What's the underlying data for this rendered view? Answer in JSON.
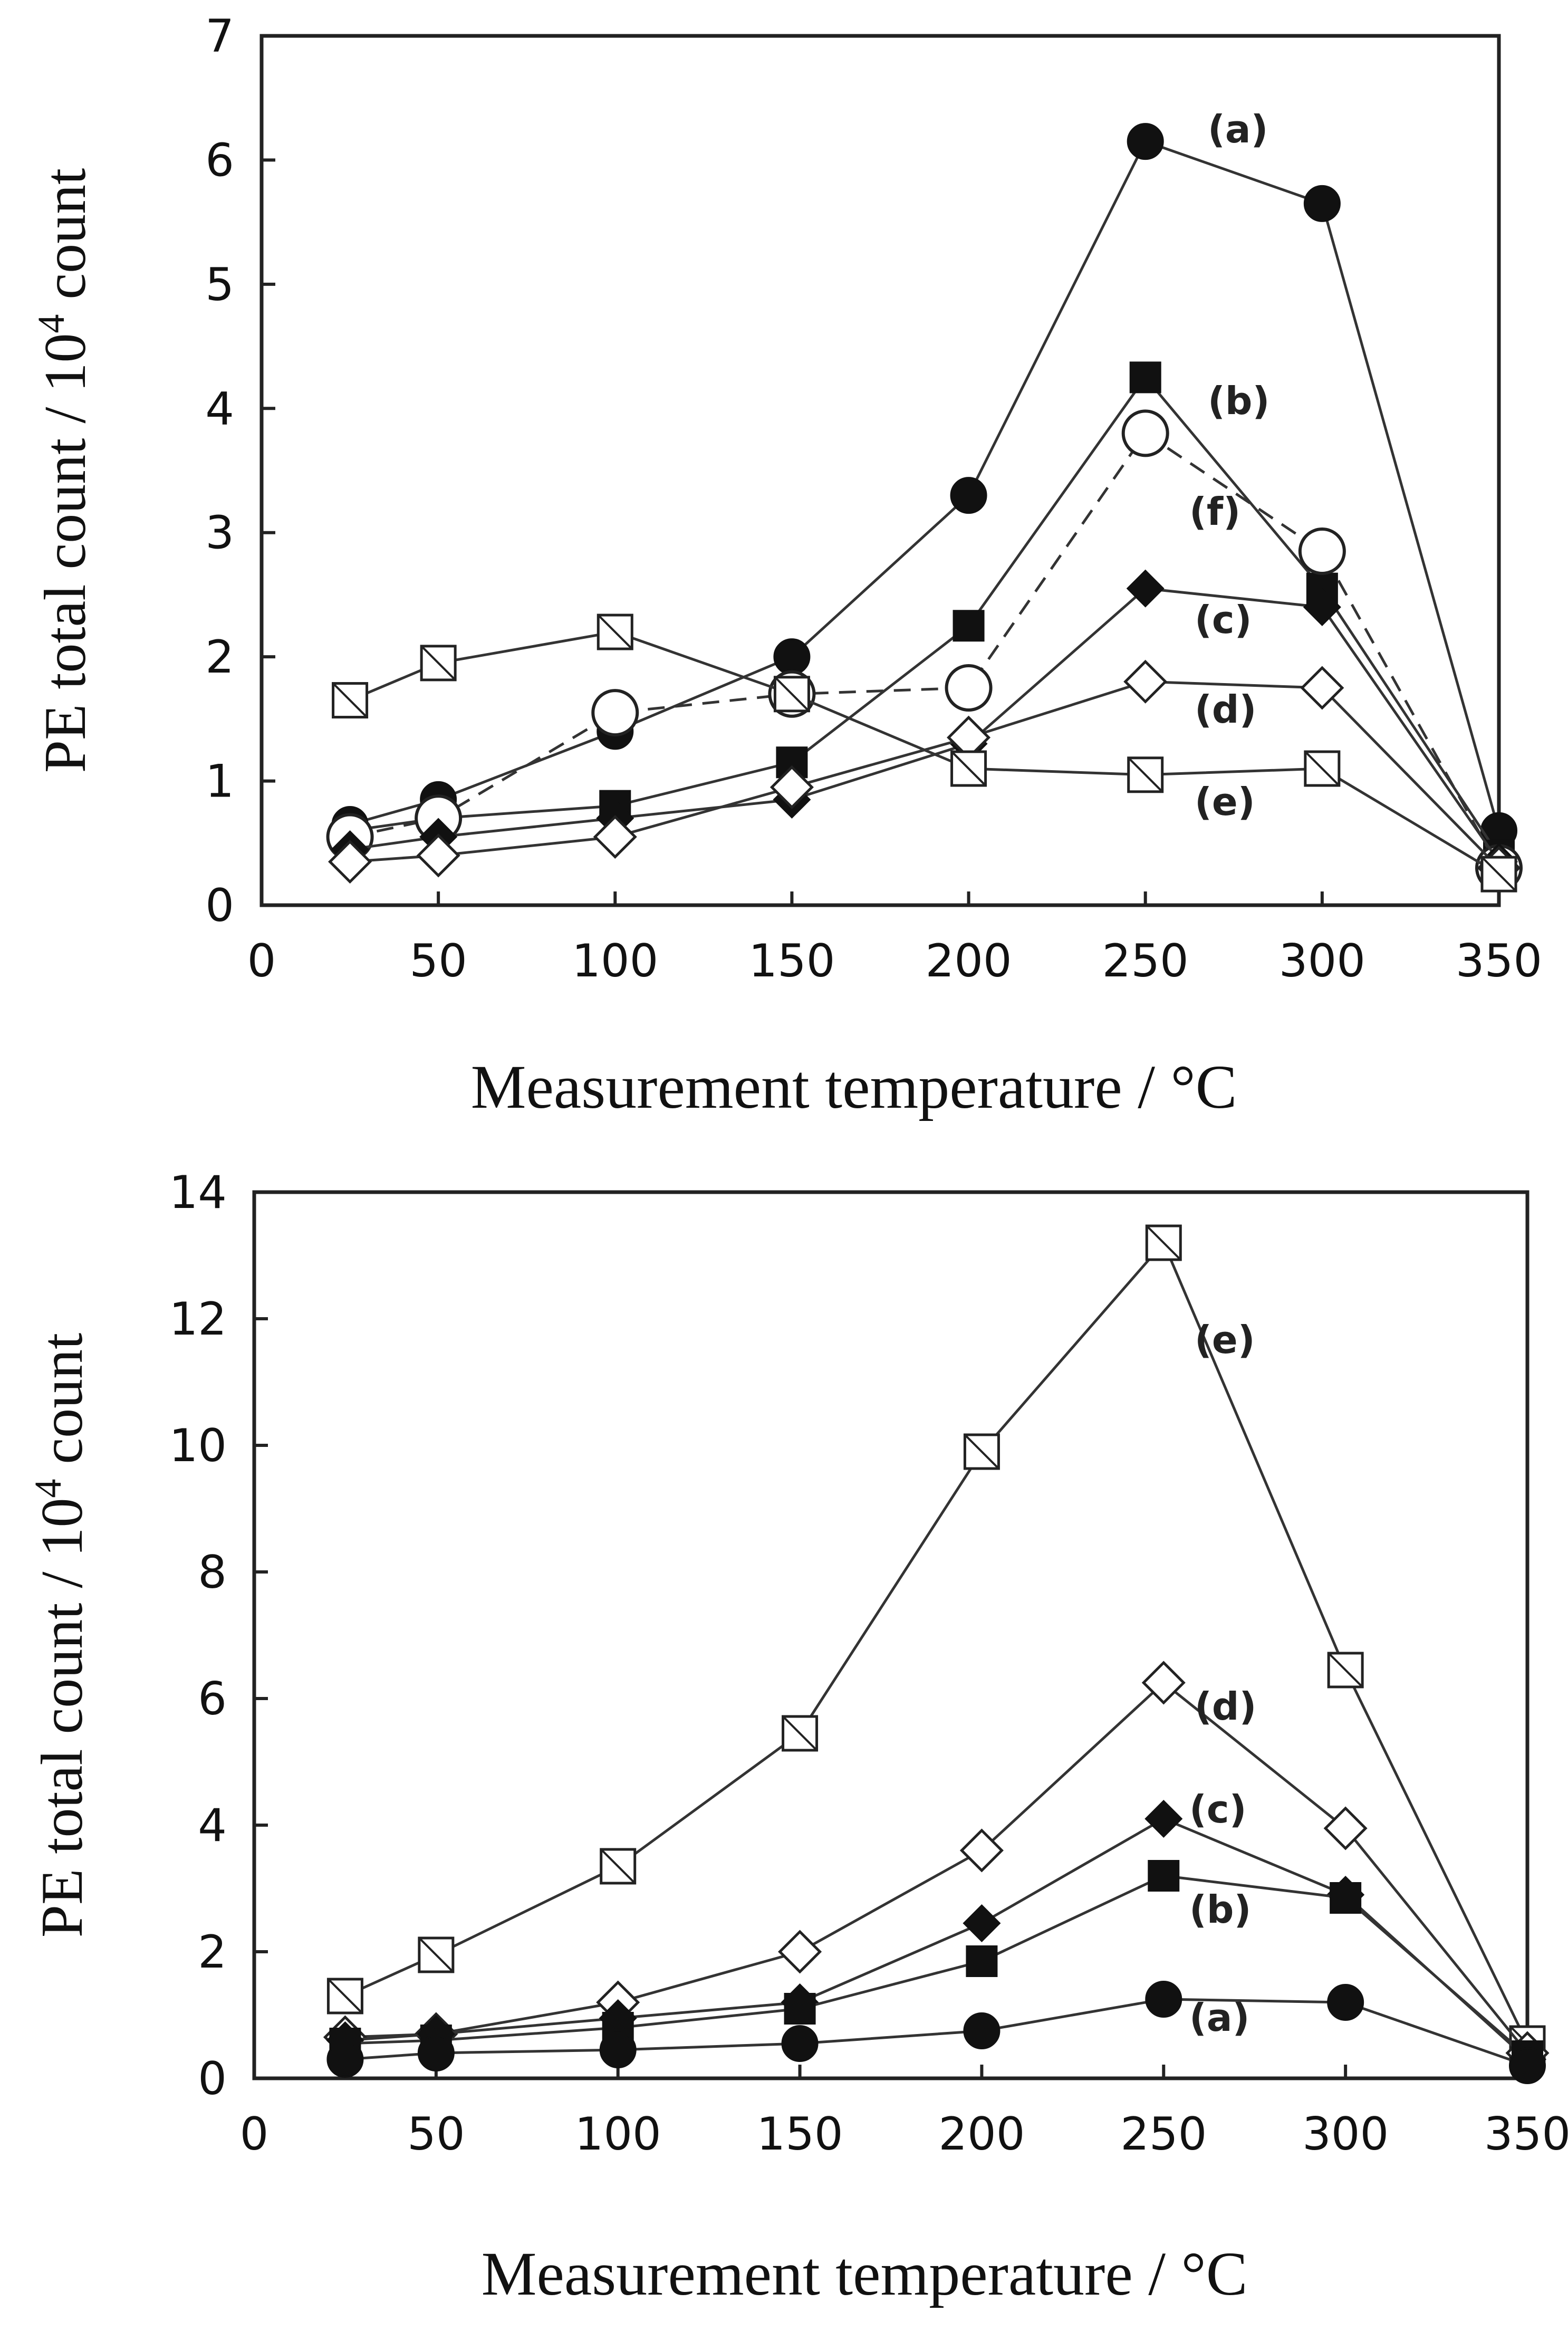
{
  "chart_data": [
    {
      "type": "line",
      "title": "",
      "xlabel": "Measurement temperature / °C",
      "ylabel": "PE total count / 10",
      "ylabel_sup": "4",
      "ylabel_suffix": " count",
      "xlim": [
        0,
        350
      ],
      "ylim": [
        0,
        7
      ],
      "xticks": [
        "0",
        "50",
        "100",
        "150",
        "200",
        "250",
        "300",
        "350"
      ],
      "yticks": [
        "0",
        "1",
        "2",
        "3",
        "4",
        "5",
        "6",
        "7"
      ],
      "x": [
        25,
        50,
        100,
        150,
        200,
        250,
        300,
        350
      ],
      "series": [
        {
          "name": "(a)",
          "marker": "filled-circle",
          "dashed": false,
          "values": [
            0.65,
            0.85,
            1.4,
            2.0,
            3.3,
            6.15,
            5.65,
            0.6
          ]
        },
        {
          "name": "(b)",
          "marker": "filled-square",
          "dashed": false,
          "values": [
            0.6,
            0.7,
            0.8,
            1.15,
            2.25,
            4.25,
            2.55,
            0.4
          ]
        },
        {
          "name": "(f)",
          "marker": "open-circle",
          "dashed": true,
          "values": [
            0.55,
            0.7,
            1.55,
            1.7,
            1.75,
            3.8,
            2.85,
            0.3
          ]
        },
        {
          "name": "(c)",
          "marker": "filled-diamond",
          "dashed": false,
          "values": [
            0.45,
            0.55,
            0.7,
            0.85,
            1.3,
            2.55,
            2.4,
            0.35
          ]
        },
        {
          "name": "(d)",
          "marker": "open-diamond",
          "dashed": false,
          "values": [
            0.35,
            0.4,
            0.55,
            0.95,
            1.35,
            1.8,
            1.75,
            0.3
          ]
        },
        {
          "name": "(e)",
          "marker": "crossed-square",
          "dashed": false,
          "values": [
            1.65,
            1.95,
            2.2,
            1.7,
            1.1,
            1.05,
            1.1,
            0.25
          ]
        }
      ]
    },
    {
      "type": "line",
      "title": "",
      "xlabel": "Measurement temperature / °C",
      "ylabel": "PE total count / 10",
      "ylabel_sup": "4",
      "ylabel_suffix": " count",
      "xlim": [
        0,
        350
      ],
      "ylim": [
        0,
        14
      ],
      "xticks": [
        "0",
        "50",
        "100",
        "150",
        "200",
        "250",
        "300",
        "350"
      ],
      "yticks": [
        "0",
        "2",
        "4",
        "6",
        "8",
        "10",
        "12",
        "14"
      ],
      "x": [
        25,
        50,
        100,
        150,
        200,
        250,
        300,
        350
      ],
      "series": [
        {
          "name": "(e)",
          "marker": "crossed-square",
          "dashed": false,
          "values": [
            1.3,
            1.95,
            3.35,
            5.45,
            9.9,
            13.2,
            6.45,
            0.55
          ]
        },
        {
          "name": "(d)",
          "marker": "open-diamond",
          "dashed": false,
          "values": [
            0.65,
            0.7,
            1.2,
            2.0,
            3.6,
            6.25,
            3.95,
            0.4
          ]
        },
        {
          "name": "(c)",
          "marker": "filled-diamond",
          "dashed": false,
          "values": [
            0.6,
            0.7,
            0.95,
            1.2,
            2.45,
            4.1,
            2.9,
            0.3
          ]
        },
        {
          "name": "(b)",
          "marker": "filled-square",
          "dashed": false,
          "values": [
            0.55,
            0.6,
            0.8,
            1.1,
            1.85,
            3.2,
            2.85,
            0.35
          ]
        },
        {
          "name": "(a)",
          "marker": "filled-circle",
          "dashed": false,
          "values": [
            0.3,
            0.4,
            0.45,
            0.55,
            0.75,
            1.25,
            1.2,
            0.2
          ]
        }
      ]
    }
  ]
}
